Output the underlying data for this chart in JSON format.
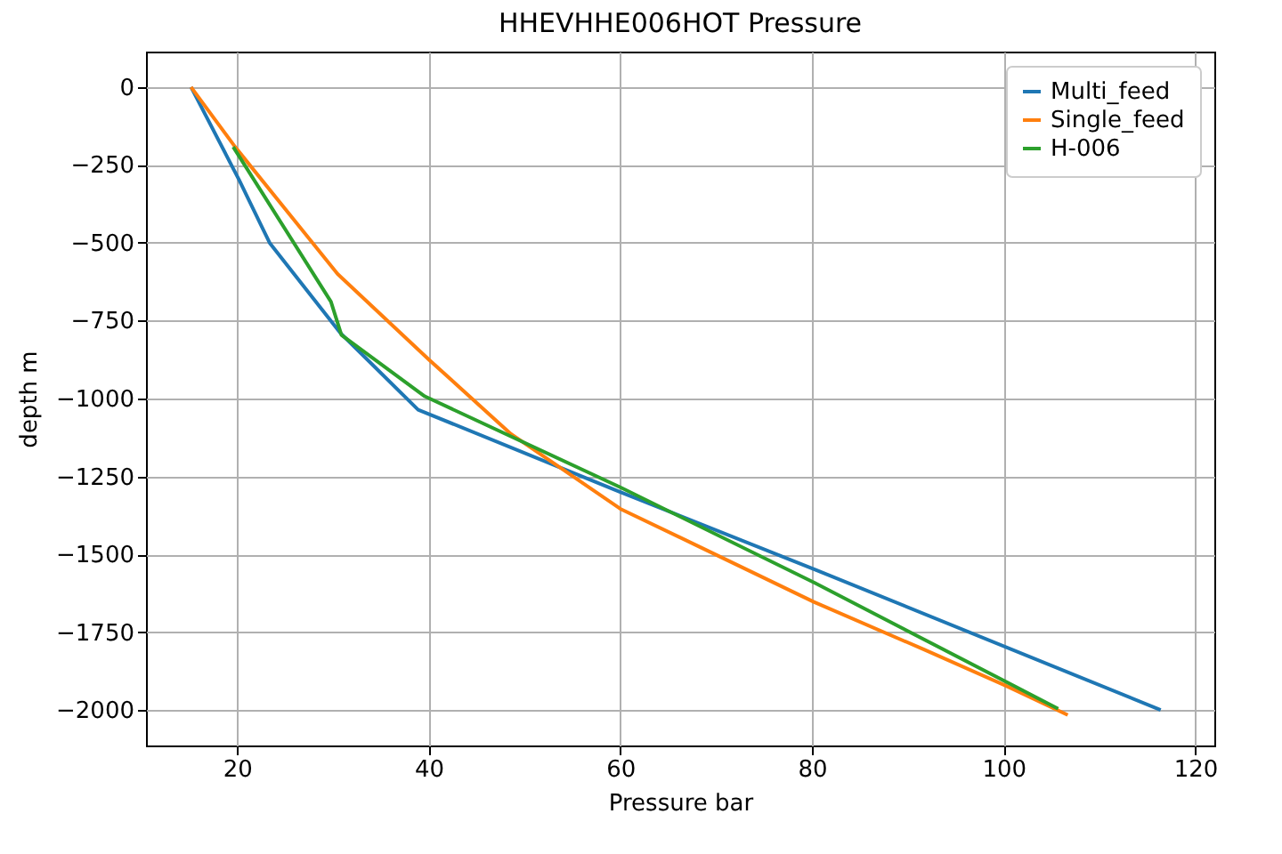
{
  "chart_data": {
    "type": "line",
    "title": "HHEVHHE006HOT Pressure",
    "xlabel": "Pressure bar",
    "ylabel": "depth m",
    "xlim": [
      10.5,
      122
    ],
    "xticks": [
      20,
      40,
      60,
      80,
      100,
      120
    ],
    "ylim": [
      -2114,
      114
    ],
    "yticks": [
      0,
      -250,
      -500,
      -750,
      -1000,
      -1250,
      -1500,
      -1750,
      -2000
    ],
    "grid": true,
    "legend": "top right",
    "series": [
      {
        "name": "Multi_feed",
        "color": "#1f77b4",
        "x": [
          15.2,
          20.2,
          23.4,
          30.8,
          38.9,
          60,
          80.4,
          116.4
        ],
        "values": [
          0,
          -297,
          -500,
          -790,
          -1036,
          -1300,
          -1550,
          -2000
        ]
      },
      {
        "name": "Single_feed",
        "color": "#ff7f0e",
        "x": [
          15.2,
          19.8,
          30.5,
          40.1,
          48.6,
          60,
          68.4,
          80.2,
          91.7,
          100.3,
          106.7
        ],
        "values": [
          0,
          -192,
          -600,
          -877,
          -1114,
          -1354,
          -1478,
          -1653,
          -1806,
          -1923,
          -2016
        ]
      },
      {
        "name": "H-006",
        "color": "#2ca02c",
        "x": [
          19.6,
          29.8,
          30.9,
          39.6,
          60,
          80.3,
          105.7
        ],
        "values": [
          -192,
          -689,
          -796,
          -993,
          -1285,
          -1592,
          -1996
        ]
      }
    ]
  }
}
